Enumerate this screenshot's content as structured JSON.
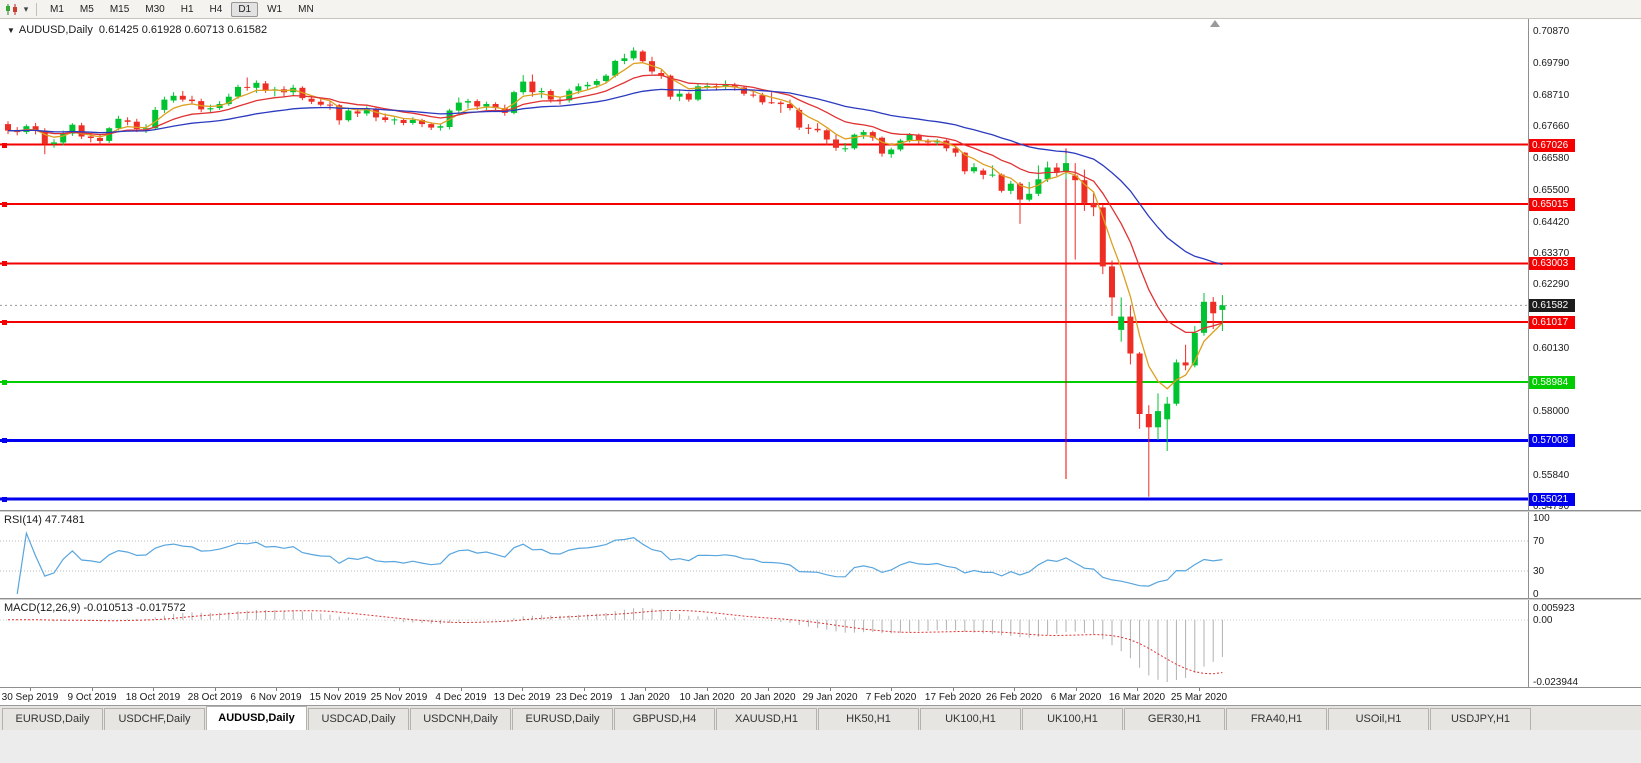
{
  "toolbar": {
    "timeframes": [
      "M1",
      "M5",
      "M15",
      "M30",
      "H1",
      "H4",
      "D1",
      "W1",
      "MN"
    ],
    "active_timeframe": "D1"
  },
  "chart": {
    "symbol": "AUDUSD,Daily",
    "ohlc": "0.61425 0.61928 0.60713 0.61582"
  },
  "chart_data": {
    "type": "candlestick",
    "symbol": "AUDUSD",
    "timeframe": "Daily",
    "up_color": "#00c332",
    "down_color": "#ee2e24",
    "bars": [
      [
        0.6772,
        0.6782,
        0.6738,
        0.675
      ],
      [
        0.675,
        0.6762,
        0.6734,
        0.6745
      ],
      [
        0.6745,
        0.6771,
        0.6738,
        0.6765
      ],
      [
        0.6765,
        0.6776,
        0.6737,
        0.675
      ],
      [
        0.675,
        0.6758,
        0.667,
        0.6705
      ],
      [
        0.6705,
        0.6721,
        0.6692,
        0.671
      ],
      [
        0.671,
        0.675,
        0.67,
        0.674
      ],
      [
        0.674,
        0.6775,
        0.6732,
        0.677
      ],
      [
        0.6768,
        0.6776,
        0.6722,
        0.673
      ],
      [
        0.673,
        0.6742,
        0.671,
        0.6725
      ],
      [
        0.6725,
        0.6736,
        0.6702,
        0.6715
      ],
      [
        0.6715,
        0.6762,
        0.6708,
        0.6758
      ],
      [
        0.6758,
        0.68,
        0.675,
        0.679
      ],
      [
        0.6785,
        0.6795,
        0.6768,
        0.678
      ],
      [
        0.678,
        0.679,
        0.6745,
        0.6755
      ],
      [
        0.6755,
        0.6772,
        0.6742,
        0.6758
      ],
      [
        0.6758,
        0.683,
        0.6752,
        0.682
      ],
      [
        0.682,
        0.6865,
        0.681,
        0.6855
      ],
      [
        0.6852,
        0.688,
        0.6845,
        0.6868
      ],
      [
        0.6868,
        0.6884,
        0.6848,
        0.6855
      ],
      [
        0.6855,
        0.6868,
        0.6838,
        0.685
      ],
      [
        0.685,
        0.6858,
        0.6812,
        0.6822
      ],
      [
        0.6822,
        0.6838,
        0.681,
        0.6826
      ],
      [
        0.6826,
        0.685,
        0.682,
        0.684
      ],
      [
        0.684,
        0.6875,
        0.6834,
        0.6865
      ],
      [
        0.6865,
        0.6905,
        0.6858,
        0.6898
      ],
      [
        0.6898,
        0.693,
        0.6885,
        0.6895
      ],
      [
        0.6895,
        0.692,
        0.6878,
        0.6912
      ],
      [
        0.691,
        0.6918,
        0.6878,
        0.6886
      ],
      [
        0.6886,
        0.6898,
        0.6866,
        0.689
      ],
      [
        0.689,
        0.69,
        0.6862,
        0.688
      ],
      [
        0.688,
        0.6905,
        0.687,
        0.6895
      ],
      [
        0.6895,
        0.69,
        0.6853,
        0.686
      ],
      [
        0.6858,
        0.6868,
        0.684,
        0.6848
      ],
      [
        0.6848,
        0.6858,
        0.6832,
        0.6838
      ],
      [
        0.6838,
        0.685,
        0.682,
        0.6836
      ],
      [
        0.6836,
        0.684,
        0.677,
        0.6785
      ],
      [
        0.6785,
        0.6825,
        0.678,
        0.6818
      ],
      [
        0.6815,
        0.6824,
        0.6796,
        0.6808
      ],
      [
        0.6808,
        0.6832,
        0.68,
        0.6825
      ],
      [
        0.6825,
        0.683,
        0.6782,
        0.6795
      ],
      [
        0.6795,
        0.6808,
        0.6778,
        0.6786
      ],
      [
        0.6786,
        0.6795,
        0.677,
        0.6788
      ],
      [
        0.6786,
        0.6792,
        0.6768,
        0.6776
      ],
      [
        0.6776,
        0.6795,
        0.677,
        0.6786
      ],
      [
        0.6786,
        0.679,
        0.6762,
        0.6772
      ],
      [
        0.6772,
        0.6778,
        0.6752,
        0.676
      ],
      [
        0.676,
        0.6772,
        0.675,
        0.6765
      ],
      [
        0.6762,
        0.6824,
        0.6754,
        0.6818
      ],
      [
        0.6818,
        0.6862,
        0.681,
        0.6845
      ],
      [
        0.6845,
        0.6858,
        0.6825,
        0.685
      ],
      [
        0.685,
        0.6856,
        0.682,
        0.6832
      ],
      [
        0.6832,
        0.6848,
        0.682,
        0.684
      ],
      [
        0.684,
        0.6846,
        0.6818,
        0.6826
      ],
      [
        0.6826,
        0.6838,
        0.68,
        0.681
      ],
      [
        0.681,
        0.6885,
        0.6805,
        0.688
      ],
      [
        0.688,
        0.6938,
        0.6872,
        0.6916
      ],
      [
        0.6916,
        0.694,
        0.6865,
        0.688
      ],
      [
        0.688,
        0.6895,
        0.686,
        0.6884
      ],
      [
        0.6884,
        0.689,
        0.6845,
        0.6855
      ],
      [
        0.6855,
        0.6865,
        0.6838,
        0.6852
      ],
      [
        0.6852,
        0.6892,
        0.6845,
        0.6885
      ],
      [
        0.6885,
        0.691,
        0.6875,
        0.69
      ],
      [
        0.69,
        0.6915,
        0.6888,
        0.6905
      ],
      [
        0.6905,
        0.6925,
        0.6895,
        0.6918
      ],
      [
        0.6918,
        0.6942,
        0.691,
        0.6936
      ],
      [
        0.6936,
        0.699,
        0.693,
        0.6986
      ],
      [
        0.6986,
        0.701,
        0.6975,
        0.6995
      ],
      [
        0.6995,
        0.7032,
        0.6988,
        0.7021
      ],
      [
        0.7018,
        0.7023,
        0.698,
        0.6985
      ],
      [
        0.6985,
        0.7,
        0.6942,
        0.695
      ],
      [
        0.6945,
        0.6955,
        0.6925,
        0.6936
      ],
      [
        0.6936,
        0.694,
        0.6855,
        0.6865
      ],
      [
        0.6865,
        0.689,
        0.685,
        0.6875
      ],
      [
        0.6875,
        0.688,
        0.6848,
        0.6855
      ],
      [
        0.6855,
        0.691,
        0.685,
        0.69
      ],
      [
        0.6898,
        0.6912,
        0.689,
        0.6901
      ],
      [
        0.6901,
        0.691,
        0.6885,
        0.6898
      ],
      [
        0.6898,
        0.692,
        0.6888,
        0.6905
      ],
      [
        0.6905,
        0.6912,
        0.6885,
        0.6896
      ],
      [
        0.6896,
        0.69,
        0.6868,
        0.6875
      ],
      [
        0.6872,
        0.6885,
        0.6862,
        0.687
      ],
      [
        0.687,
        0.6878,
        0.6838,
        0.6846
      ],
      [
        0.6846,
        0.688,
        0.684,
        0.6845
      ],
      [
        0.6845,
        0.685,
        0.681,
        0.684
      ],
      [
        0.684,
        0.6855,
        0.6818,
        0.6826
      ],
      [
        0.682,
        0.6828,
        0.6752,
        0.676
      ],
      [
        0.676,
        0.6772,
        0.6738,
        0.6756
      ],
      [
        0.6756,
        0.6775,
        0.6744,
        0.6751
      ],
      [
        0.6751,
        0.6756,
        0.67,
        0.672
      ],
      [
        0.672,
        0.6735,
        0.6682,
        0.6692
      ],
      [
        0.6688,
        0.6708,
        0.6678,
        0.669
      ],
      [
        0.669,
        0.674,
        0.6685,
        0.6736
      ],
      [
        0.6736,
        0.6752,
        0.6722,
        0.6745
      ],
      [
        0.6745,
        0.675,
        0.6715,
        0.6726
      ],
      [
        0.6726,
        0.673,
        0.6662,
        0.6672
      ],
      [
        0.667,
        0.6692,
        0.6658,
        0.6686
      ],
      [
        0.6686,
        0.6722,
        0.668,
        0.6716
      ],
      [
        0.6716,
        0.6742,
        0.671,
        0.6736
      ],
      [
        0.6736,
        0.674,
        0.6705,
        0.6716
      ],
      [
        0.6716,
        0.6722,
        0.6698,
        0.671
      ],
      [
        0.671,
        0.6722,
        0.67,
        0.6716
      ],
      [
        0.6716,
        0.672,
        0.668,
        0.669
      ],
      [
        0.669,
        0.6695,
        0.6662,
        0.6675
      ],
      [
        0.6675,
        0.6678,
        0.6602,
        0.6612
      ],
      [
        0.6612,
        0.664,
        0.6605,
        0.6626
      ],
      [
        0.6615,
        0.6622,
        0.6585,
        0.66
      ],
      [
        0.66,
        0.6632,
        0.6592,
        0.6601
      ],
      [
        0.6601,
        0.6605,
        0.654,
        0.6546
      ],
      [
        0.6546,
        0.658,
        0.6535,
        0.657
      ],
      [
        0.657,
        0.6576,
        0.6434,
        0.6516
      ],
      [
        0.6516,
        0.6576,
        0.651,
        0.6536
      ],
      [
        0.6536,
        0.6632,
        0.6528,
        0.6585
      ],
      [
        0.6585,
        0.6645,
        0.6576,
        0.6625
      ],
      [
        0.6625,
        0.664,
        0.6596,
        0.661
      ],
      [
        0.661,
        0.6672,
        0.6585,
        0.664
      ],
      [
        0.6598,
        0.664,
        0.6313,
        0.6582
      ],
      [
        0.6582,
        0.6618,
        0.6478,
        0.6505
      ],
      [
        0.6505,
        0.6538,
        0.646,
        0.649
      ],
      [
        0.649,
        0.65,
        0.6264,
        0.629
      ],
      [
        0.629,
        0.631,
        0.6122,
        0.6185
      ],
      [
        0.6075,
        0.6185,
        0.6035,
        0.612
      ],
      [
        0.612,
        0.6157,
        0.5958,
        0.5995
      ],
      [
        0.5995,
        0.6,
        0.574,
        0.579
      ],
      [
        0.579,
        0.582,
        0.551,
        0.5745
      ],
      [
        0.5745,
        0.586,
        0.5702,
        0.58
      ],
      [
        0.5772,
        0.5848,
        0.5665,
        0.5825
      ],
      [
        0.5825,
        0.5975,
        0.5818,
        0.5965
      ],
      [
        0.5965,
        0.6025,
        0.5938,
        0.5955
      ],
      [
        0.5955,
        0.6088,
        0.5948,
        0.6065
      ],
      [
        0.6065,
        0.62,
        0.6055,
        0.617
      ],
      [
        0.617,
        0.6186,
        0.6078,
        0.6131
      ],
      [
        0.61425,
        0.61928,
        0.60713,
        0.61582
      ]
    ],
    "ma": [
      {
        "period": 5,
        "color": "#dd9f1f"
      },
      {
        "period": 13,
        "color": "#e03232"
      },
      {
        "period": 34,
        "color": "#2b3bbf"
      }
    ],
    "price_axis": {
      "min": 0.5465,
      "max": 0.7128,
      "ticks": [
        {
          "v": 0.7087,
          "label": "0.70870"
        },
        {
          "v": 0.6979,
          "label": "0.69790"
        },
        {
          "v": 0.6871,
          "label": "0.68710"
        },
        {
          "v": 0.6766,
          "label": "0.67660"
        },
        {
          "v": 0.6658,
          "label": "0.66580"
        },
        {
          "v": 0.655,
          "label": "0.65500"
        },
        {
          "v": 0.6442,
          "label": "0.64420"
        },
        {
          "v": 0.6337,
          "label": "0.63370"
        },
        {
          "v": 0.6229,
          "label": "0.62290"
        },
        {
          "v": 0.6013,
          "label": "0.60130"
        },
        {
          "v": 0.58,
          "label": "0.58000"
        },
        {
          "v": 0.5584,
          "label": "0.55840"
        },
        {
          "v": 0.5479,
          "label": "0.54790"
        }
      ]
    },
    "levels": [
      {
        "v": 0.67026,
        "label": "0.67026",
        "color": "#f40000",
        "w": 2
      },
      {
        "v": 0.65015,
        "label": "0.65015",
        "color": "#f40000",
        "w": 2
      },
      {
        "v": 0.63003,
        "label": "0.63003",
        "color": "#f40000",
        "w": 2
      },
      {
        "v": 0.61017,
        "label": "0.61017",
        "color": "#f40000",
        "w": 2
      },
      {
        "v": 0.58984,
        "label": "0.58984",
        "color": "#00cc00",
        "w": 2
      },
      {
        "v": 0.57008,
        "label": "0.57008",
        "color": "#0000ee",
        "w": 3
      },
      {
        "v": 0.55021,
        "label": "0.55021",
        "color": "#0000ee",
        "w": 3
      }
    ],
    "current_price": {
      "v": 0.61582,
      "label": "0.61582",
      "color": "#1c1c1c"
    },
    "vline": {
      "bar": 115,
      "from": 0.669,
      "to": 0.557,
      "color": "#f40000"
    },
    "x_axis": {
      "labels": [
        "30 Sep 2019",
        "9 Oct 2019",
        "18 Oct 2019",
        "28 Oct 2019",
        "6 Nov 2019",
        "15 Nov 2019",
        "25 Nov 2019",
        "4 Dec 2019",
        "13 Dec 2019",
        "23 Dec 2019",
        "1 Jan 2020",
        "10 Jan 2020",
        "20 Jan 2020",
        "29 Jan 2020",
        "7 Feb 2020",
        "17 Feb 2020",
        "26 Feb 2020",
        "6 Mar 2020",
        "16 Mar 2020",
        "25 Mar 2020"
      ]
    },
    "rsi": {
      "label": "RSI(14) 47.7481",
      "period": 14,
      "value": 47.7481,
      "overbought": 70,
      "oversold": 30,
      "color": "#58a5de",
      "ticks": [
        {
          "v": 100,
          "label": "100"
        },
        {
          "v": 70,
          "label": "70"
        },
        {
          "v": 30,
          "label": "30"
        },
        {
          "v": 0,
          "label": "0"
        }
      ]
    },
    "macd": {
      "label": "MACD(12,26,9) -0.010513 -0.017572",
      "fast": 12,
      "slow": 26,
      "signal": 9,
      "main_value": -0.010513,
      "signal_value": -0.017572,
      "hist_color": "#b0b0b0",
      "signal_color": "#e03232",
      "ticks": {
        "max": "0.005923",
        "zero": "0.00",
        "min": "-0.023944"
      }
    }
  },
  "tabs": {
    "items": [
      "EURUSD,Daily",
      "USDCHF,Daily",
      "AUDUSD,Daily",
      "USDCAD,Daily",
      "USDCNH,Daily",
      "EURUSD,Daily",
      "GBPUSD,H4",
      "XAUUSD,H1",
      "HK50,H1",
      "UK100,H1",
      "UK100,H1",
      "GER30,H1",
      "FRA40,H1",
      "USOil,H1",
      "USDJPY,H1"
    ],
    "active_index": 2
  }
}
